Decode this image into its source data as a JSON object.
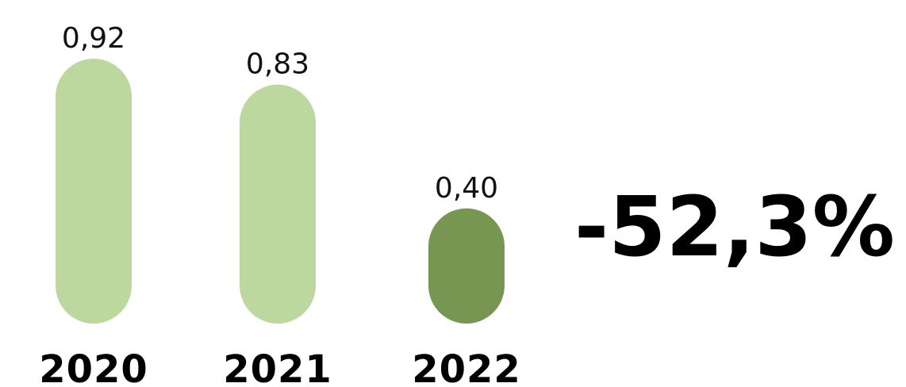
{
  "chart_data": {
    "type": "bar",
    "categories": [
      "2020",
      "2021",
      "2022"
    ],
    "values": [
      0.92,
      0.83,
      0.4
    ],
    "value_labels": [
      "0,92",
      "0,83",
      "0,40"
    ],
    "bar_colors": [
      "#bcd89e",
      "#bcd89e",
      "#769651"
    ],
    "change_label": "-52,3%",
    "title": "",
    "xlabel": "",
    "ylabel": ""
  }
}
